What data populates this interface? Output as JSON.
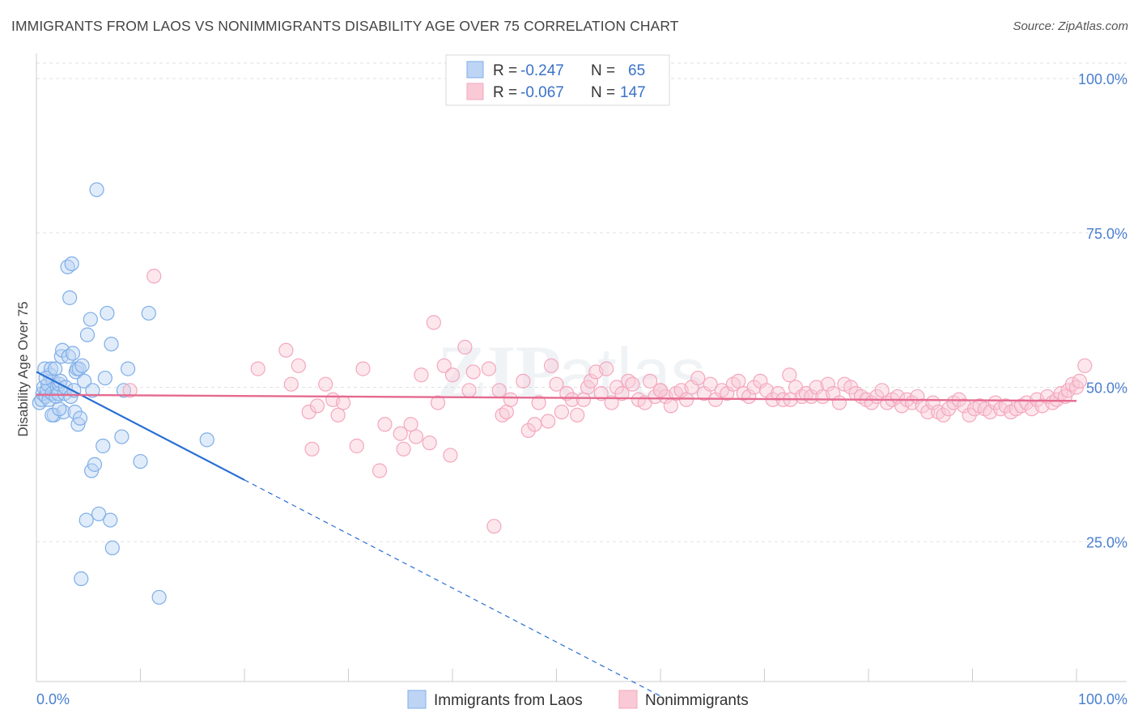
{
  "title": "IMMIGRANTS FROM LAOS VS NONIMMIGRANTS DISABILITY AGE OVER 75 CORRELATION CHART",
  "source": "Source: ZipAtlas.com",
  "chart_data": {
    "type": "scatter",
    "title": "IMMIGRANTS FROM LAOS VS NONIMMIGRANTS DISABILITY AGE OVER 75 CORRELATION CHART",
    "ylabel": "Disability Age Over 75",
    "xlabel": "",
    "xlim": [
      0,
      100
    ],
    "ylim": [
      0,
      105
    ],
    "x_tick_labels": [
      "0.0%",
      "100.0%"
    ],
    "y_tick_labels": [
      "100.0%",
      "75.0%",
      "50.0%",
      "25.0%"
    ],
    "y_ticks": [
      100,
      75,
      50,
      25
    ],
    "grid": true,
    "legend_placement": "top-center",
    "stats": [
      {
        "series": "Immigrants from Laos",
        "r_label": "R =",
        "r": "-0.247",
        "n_label": "N =",
        "n": "65"
      },
      {
        "series": "Nonimmigrants",
        "r_label": "R =",
        "r": "-0.067",
        "n_label": "N =",
        "n": "147"
      }
    ],
    "series": [
      {
        "name": "Immigrants from Laos",
        "color": "#7eaee8",
        "line_color": "#2a6fd4",
        "trend": {
          "x0": 0,
          "y0": 52.5,
          "x1_solid": 20,
          "y1_solid": 35,
          "x1_dash": 60,
          "y1_dash": 0
        },
        "points": [
          [
            0.3,
            47.5
          ],
          [
            0.5,
            48
          ],
          [
            0.6,
            49
          ],
          [
            0.7,
            50
          ],
          [
            0.8,
            53
          ],
          [
            0.9,
            48.5
          ],
          [
            1.0,
            49.5
          ],
          [
            1.1,
            50.5
          ],
          [
            1.2,
            48
          ],
          [
            1.3,
            52
          ],
          [
            1.4,
            53
          ],
          [
            1.5,
            49
          ],
          [
            1.6,
            51
          ],
          [
            1.7,
            45.5
          ],
          [
            1.8,
            53
          ],
          [
            1.9,
            48.5
          ],
          [
            2.0,
            50
          ],
          [
            2.1,
            49
          ],
          [
            2.2,
            50.5
          ],
          [
            2.3,
            51
          ],
          [
            2.4,
            55
          ],
          [
            2.5,
            56
          ],
          [
            2.6,
            46
          ],
          [
            2.7,
            49
          ],
          [
            2.8,
            50
          ],
          [
            3.0,
            69.5
          ],
          [
            3.1,
            55
          ],
          [
            3.2,
            64.5
          ],
          [
            3.3,
            48.5
          ],
          [
            3.4,
            70
          ],
          [
            3.5,
            55.5
          ],
          [
            3.6,
            49.5
          ],
          [
            3.7,
            46
          ],
          [
            3.8,
            52.5
          ],
          [
            3.9,
            53
          ],
          [
            4.0,
            44
          ],
          [
            4.1,
            53
          ],
          [
            4.2,
            45
          ],
          [
            4.3,
            19
          ],
          [
            4.4,
            53.5
          ],
          [
            4.6,
            51
          ],
          [
            4.8,
            28.5
          ],
          [
            4.9,
            58.5
          ],
          [
            5.2,
            61
          ],
          [
            5.3,
            36.5
          ],
          [
            5.4,
            49.5
          ],
          [
            5.6,
            37.5
          ],
          [
            5.8,
            82
          ],
          [
            6.0,
            29.5
          ],
          [
            6.4,
            40.5
          ],
          [
            6.6,
            51.5
          ],
          [
            6.8,
            62
          ],
          [
            7.1,
            28.5
          ],
          [
            7.2,
            57
          ],
          [
            7.3,
            24
          ],
          [
            8.2,
            42
          ],
          [
            8.4,
            49.5
          ],
          [
            8.8,
            53
          ],
          [
            10.0,
            38
          ],
          [
            10.8,
            62
          ],
          [
            11.8,
            16
          ],
          [
            16.4,
            41.5
          ],
          [
            1.5,
            45.5
          ],
          [
            2.2,
            46.5
          ],
          [
            0.9,
            51.5
          ]
        ]
      },
      {
        "name": "Nonimmigrants",
        "color": "#f4a7bd",
        "line_color": "#e56a8f",
        "trend": {
          "x0": 0,
          "y0": 48.8,
          "x1": 100,
          "y1": 47.8
        },
        "points": [
          [
            9.0,
            49.5
          ],
          [
            11.3,
            68
          ],
          [
            21.3,
            53
          ],
          [
            24.0,
            56
          ],
          [
            24.5,
            50.5
          ],
          [
            25.2,
            53.5
          ],
          [
            26.2,
            46
          ],
          [
            26.5,
            40
          ],
          [
            27.0,
            47
          ],
          [
            27.8,
            50.5
          ],
          [
            28.5,
            48
          ],
          [
            29.0,
            45.5
          ],
          [
            29.5,
            47.5
          ],
          [
            30.8,
            40.5
          ],
          [
            31.4,
            53
          ],
          [
            33.0,
            36.5
          ],
          [
            33.5,
            44
          ],
          [
            35.0,
            42.5
          ],
          [
            35.3,
            40
          ],
          [
            36.0,
            44
          ],
          [
            36.5,
            42
          ],
          [
            37.0,
            52
          ],
          [
            37.8,
            41
          ],
          [
            38.2,
            60.5
          ],
          [
            38.6,
            47.5
          ],
          [
            39.2,
            53.5
          ],
          [
            39.8,
            39
          ],
          [
            40.0,
            52
          ],
          [
            41.2,
            56.5
          ],
          [
            41.6,
            49.5
          ],
          [
            42.0,
            52.5
          ],
          [
            43.5,
            53
          ],
          [
            44.0,
            27.5
          ],
          [
            44.5,
            49.5
          ],
          [
            44.8,
            45.5
          ],
          [
            45.2,
            46
          ],
          [
            45.6,
            48
          ],
          [
            46.8,
            51
          ],
          [
            47.3,
            43
          ],
          [
            47.9,
            44
          ],
          [
            48.3,
            47.5
          ],
          [
            49.2,
            44.5
          ],
          [
            49.5,
            53.5
          ],
          [
            50.0,
            50.5
          ],
          [
            50.5,
            46
          ],
          [
            51.0,
            49
          ],
          [
            51.5,
            48
          ],
          [
            52.0,
            45.5
          ],
          [
            52.6,
            48
          ],
          [
            53.0,
            50
          ],
          [
            53.3,
            51
          ],
          [
            53.8,
            52.5
          ],
          [
            54.3,
            49
          ],
          [
            54.8,
            53
          ],
          [
            55.3,
            47.5
          ],
          [
            55.8,
            50
          ],
          [
            56.3,
            49
          ],
          [
            56.9,
            51
          ],
          [
            57.3,
            50.5
          ],
          [
            57.9,
            48
          ],
          [
            58.5,
            47.5
          ],
          [
            59.0,
            51
          ],
          [
            59.5,
            48.5
          ],
          [
            60.0,
            49.5
          ],
          [
            60.5,
            48.5
          ],
          [
            61.0,
            47
          ],
          [
            61.5,
            49
          ],
          [
            62.0,
            49.5
          ],
          [
            62.5,
            48
          ],
          [
            63.0,
            50
          ],
          [
            63.6,
            51.5
          ],
          [
            64.2,
            49
          ],
          [
            64.8,
            50.5
          ],
          [
            65.3,
            48
          ],
          [
            65.9,
            49.5
          ],
          [
            66.4,
            49
          ],
          [
            67.0,
            50.5
          ],
          [
            67.5,
            51
          ],
          [
            68.0,
            49
          ],
          [
            68.5,
            48.5
          ],
          [
            69.0,
            50
          ],
          [
            69.6,
            51
          ],
          [
            70.2,
            49.5
          ],
          [
            70.8,
            48
          ],
          [
            71.3,
            49
          ],
          [
            71.8,
            48
          ],
          [
            72.4,
            52
          ],
          [
            73.0,
            50
          ],
          [
            73.6,
            48.5
          ],
          [
            74.0,
            49
          ],
          [
            74.5,
            48.5
          ],
          [
            75.0,
            50
          ],
          [
            75.6,
            48.5
          ],
          [
            76.1,
            50.5
          ],
          [
            76.6,
            49
          ],
          [
            77.2,
            47.5
          ],
          [
            77.7,
            50.5
          ],
          [
            78.3,
            50
          ],
          [
            78.8,
            49
          ],
          [
            79.3,
            48.5
          ],
          [
            79.8,
            48
          ],
          [
            80.3,
            47.5
          ],
          [
            80.8,
            48.5
          ],
          [
            81.3,
            49.5
          ],
          [
            81.8,
            47.5
          ],
          [
            82.3,
            48
          ],
          [
            82.8,
            48.5
          ],
          [
            83.2,
            47
          ],
          [
            83.7,
            48
          ],
          [
            84.2,
            47.5
          ],
          [
            84.7,
            48.5
          ],
          [
            85.2,
            47
          ],
          [
            85.7,
            46
          ],
          [
            86.2,
            47.5
          ],
          [
            86.7,
            46
          ],
          [
            87.2,
            45.5
          ],
          [
            87.7,
            46.5
          ],
          [
            88.2,
            47.5
          ],
          [
            88.7,
            48
          ],
          [
            89.2,
            47
          ],
          [
            89.7,
            45.5
          ],
          [
            90.2,
            46.5
          ],
          [
            90.7,
            47
          ],
          [
            91.2,
            46.5
          ],
          [
            91.7,
            46
          ],
          [
            92.2,
            47.5
          ],
          [
            92.7,
            46.5
          ],
          [
            93.2,
            47
          ],
          [
            93.7,
            46
          ],
          [
            94.2,
            46.5
          ],
          [
            94.7,
            47
          ],
          [
            95.2,
            47.5
          ],
          [
            95.7,
            46.5
          ],
          [
            96.2,
            48
          ],
          [
            96.7,
            47
          ],
          [
            97.2,
            48.5
          ],
          [
            97.7,
            47.5
          ],
          [
            98.1,
            48
          ],
          [
            98.5,
            49
          ],
          [
            98.9,
            48.5
          ],
          [
            99.2,
            49.5
          ],
          [
            99.6,
            50.5
          ],
          [
            100.0,
            50
          ],
          [
            100.3,
            51
          ],
          [
            100.8,
            53.5
          ],
          [
            72.5,
            48
          ],
          [
            60.0,
            49.5
          ]
        ]
      }
    ]
  }
}
